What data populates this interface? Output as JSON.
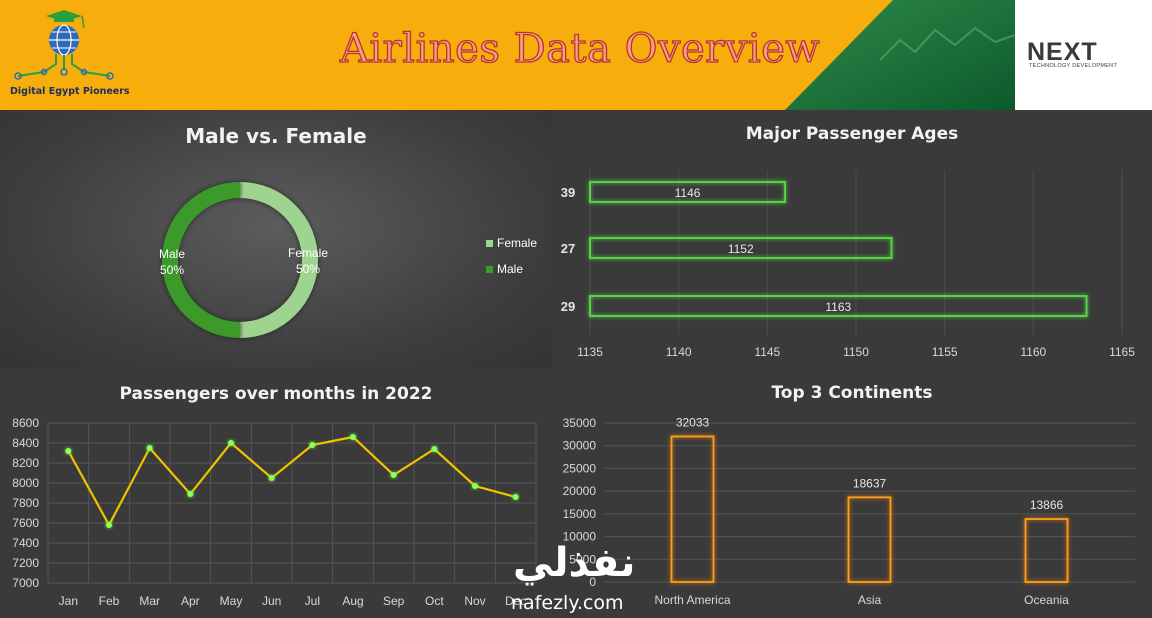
{
  "header": {
    "title": "Airlines Data Overview",
    "left_logo_text": "Digital Egypt Pioneers",
    "right_logo_word": "NEXT",
    "right_logo_sub": "TECHNOLOGY DEVELOPMENT"
  },
  "colors": {
    "header": "#f7ad0b",
    "green_dark": "#2f9e2f",
    "green_light": "#9fd490",
    "line": "#f2c200",
    "bar_orange": "#ff9e1b"
  },
  "watermark": {
    "arabic": "نفذلي",
    "latin": "nafezly.com"
  },
  "chart_data": [
    {
      "type": "pie",
      "title": "Male vs. Female",
      "labels": [
        "Female",
        "Male"
      ],
      "values": [
        50,
        50
      ],
      "value_labels": [
        "50%",
        "50%"
      ],
      "colors": [
        "#9fd490",
        "#3a9a2c"
      ],
      "legend": "right"
    },
    {
      "type": "bar",
      "orientation": "horizontal",
      "title": "Major Passenger Ages",
      "categories": [
        "39",
        "27",
        "29"
      ],
      "values": [
        1146,
        1152,
        1163
      ],
      "xlim": [
        1135,
        1165
      ],
      "xticks": [
        "1135",
        "1140",
        "1145",
        "1150",
        "1155",
        "1160",
        "1165"
      ]
    },
    {
      "type": "line",
      "title": "Passengers over months in 2022",
      "categories": [
        "Jan",
        "Feb",
        "Mar",
        "Apr",
        "May",
        "Jun",
        "Jul",
        "Aug",
        "Sep",
        "Oct",
        "Nov",
        "Dec"
      ],
      "values": [
        8320,
        7580,
        8350,
        7890,
        8400,
        8050,
        8380,
        8460,
        8080,
        8340,
        7970,
        7860
      ],
      "ylim": [
        7000,
        8600
      ],
      "yticks": [
        "7000",
        "7200",
        "7400",
        "7600",
        "7800",
        "8000",
        "8200",
        "8400",
        "8600"
      ],
      "grid": true
    },
    {
      "type": "bar",
      "title": "Top 3 Continents",
      "categories": [
        "North America",
        "Asia",
        "Oceania"
      ],
      "values": [
        32033,
        18637,
        13866
      ],
      "ylim": [
        0,
        35000
      ],
      "yticks": [
        "0",
        "5000",
        "10000",
        "15000",
        "20000",
        "25000",
        "30000",
        "35000"
      ],
      "grid": true
    }
  ]
}
